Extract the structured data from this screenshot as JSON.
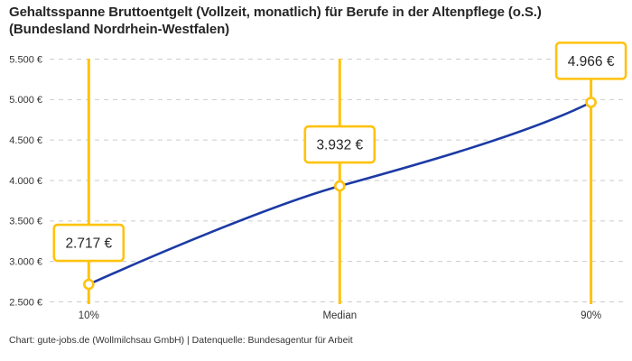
{
  "title": {
    "line1": "Gehaltsspanne Bruttoentgelt (Vollzeit, monatlich) für Berufe in der Altenpflege (o.S.)",
    "line2": "(Bundesland Nordrhein-Westfalen)"
  },
  "footer": "Chart: gute-jobs.de (Wollmilchsau GmbH) | Datenquelle: Bundesagentur für Arbeit",
  "colors": {
    "accent_yellow": "#FFC20E",
    "curve_blue": "#1C3AA5",
    "grid_gray": "#CBCBCB",
    "axis_text": "#333333",
    "callout_text": "#262626",
    "background": "#FFFFFF"
  },
  "chart_data": {
    "type": "line",
    "title": "Gehaltsspanne Bruttoentgelt (Vollzeit, monatlich) für Berufe in der Altenpflege (o.S.) (Bundesland Nordrhein-Westfalen)",
    "x_categories": [
      "10%",
      "Median",
      "90%"
    ],
    "points": [
      {
        "label": "10%",
        "value": 2717,
        "display": "2.717 €"
      },
      {
        "label": "Median",
        "value": 3932,
        "display": "3.932 €"
      },
      {
        "label": "90%",
        "value": 4966,
        "display": "4.966 €"
      }
    ],
    "y_axis": {
      "min": 2500,
      "max": 5500,
      "step": 500,
      "tick_labels": [
        "2.500 €",
        "3.000 €",
        "3.500 €",
        "4.000 €",
        "4.500 €",
        "5.000 €",
        "5.500 €"
      ]
    },
    "unit": "€",
    "grid": "dashed-horizontal",
    "legend": "none",
    "marker_style": "open-circle-on-vertical-range-line",
    "callouts": [
      "2.717 €",
      "3.932 €",
      "4.966 €"
    ]
  }
}
